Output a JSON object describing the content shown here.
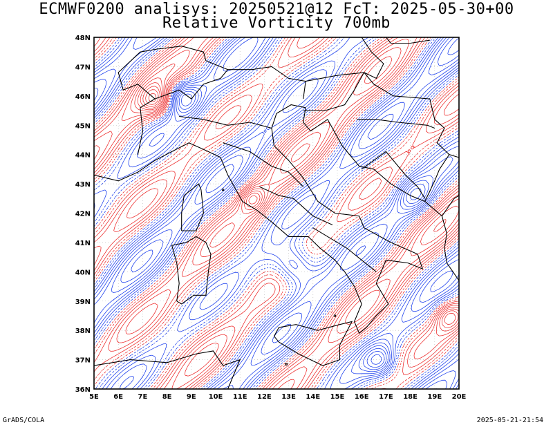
{
  "title": {
    "line1": "ECMWF0200 analisys: 20250521@12 FcT: 2025-05-30+00",
    "line2": "Relative Vorticity 700mb"
  },
  "map": {
    "region": "Italy",
    "variable": "Relative Vorticity",
    "level": "700mb",
    "lon_range": [
      5,
      20
    ],
    "lat_range": [
      36,
      48
    ],
    "lon_ticks": [
      "5E",
      "6E",
      "7E",
      "8E",
      "9E",
      "10E",
      "11E",
      "12E",
      "13E",
      "14E",
      "15E",
      "16E",
      "17E",
      "18E",
      "19E",
      "20E"
    ],
    "lat_ticks": [
      "36N",
      "37N",
      "38N",
      "39N",
      "40N",
      "41N",
      "42N",
      "43N",
      "44N",
      "45N",
      "46N",
      "47N",
      "48N"
    ],
    "grid": "dotted",
    "colors": {
      "positive_contours": "#ee3333",
      "negative_contours": "#2244ee",
      "coastlines": "#000000",
      "frame": "#000000"
    }
  },
  "footer": {
    "left": "GrADS/COLA",
    "right": "2025-05-21-21:54"
  }
}
